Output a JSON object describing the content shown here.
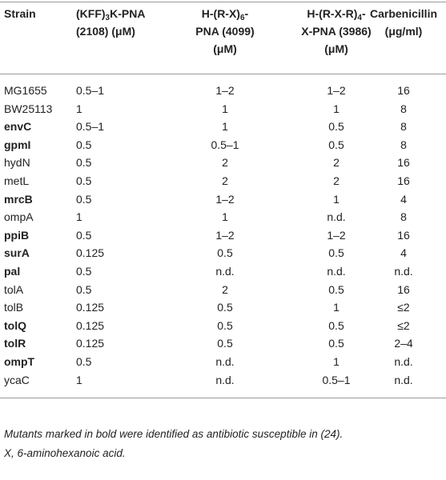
{
  "table": {
    "header": [
      [
        [
          {
            "text": "Strain"
          }
        ]
      ],
      [
        [
          {
            "text": "(KFF)"
          },
          {
            "text": "3",
            "sub": true
          },
          {
            "text": "K-PNA"
          }
        ],
        [
          {
            "text": "(2108) (μM)"
          }
        ]
      ],
      [
        [
          {
            "text": "H-(R-X)"
          },
          {
            "text": "6",
            "sub": true
          },
          {
            "text": "-"
          }
        ],
        [
          {
            "text": "PNA (4099)"
          }
        ],
        [
          {
            "text": "(μM)"
          }
        ]
      ],
      [
        [
          {
            "text": "H-(R-X-R)"
          },
          {
            "text": "4",
            "sub": true
          },
          {
            "text": "-"
          }
        ],
        [
          {
            "text": "X-PNA (3986)"
          }
        ],
        [
          {
            "text": "(μM)"
          }
        ]
      ],
      [
        [
          {
            "text": "Carbenicillin"
          }
        ],
        [
          {
            "text": "(μg/ml)"
          }
        ]
      ]
    ],
    "rows": [
      {
        "strain": "MG1655",
        "bold": false,
        "values": [
          "0.5–1",
          "1–2",
          "1–2",
          "16"
        ]
      },
      {
        "strain": "BW25113",
        "bold": false,
        "values": [
          "1",
          "1",
          "1",
          "8"
        ]
      },
      {
        "strain": "envC",
        "bold": true,
        "values": [
          "0.5–1",
          "1",
          "0.5",
          "8"
        ]
      },
      {
        "strain": "gpmI",
        "bold": true,
        "values": [
          "0.5",
          "0.5–1",
          "0.5",
          "8"
        ]
      },
      {
        "strain": "hydN",
        "bold": false,
        "values": [
          "0.5",
          "2",
          "2",
          "16"
        ]
      },
      {
        "strain": "metL",
        "bold": false,
        "values": [
          "0.5",
          "2",
          "2",
          "16"
        ]
      },
      {
        "strain": "mrcB",
        "bold": true,
        "values": [
          "0.5",
          "1–2",
          "1",
          "4"
        ]
      },
      {
        "strain": "ompA",
        "bold": false,
        "values": [
          "1",
          "1",
          "n.d.",
          "8"
        ]
      },
      {
        "strain": "ppiB",
        "bold": true,
        "values": [
          "0.5",
          "1–2",
          "1–2",
          "16"
        ]
      },
      {
        "strain": "surA",
        "bold": true,
        "values": [
          "0.125",
          "0.5",
          "0.5",
          "4"
        ]
      },
      {
        "strain": "pal",
        "bold": true,
        "values": [
          "0.5",
          "n.d.",
          "n.d.",
          "n.d."
        ]
      },
      {
        "strain": "tolA",
        "bold": false,
        "values": [
          "0.5",
          "2",
          "0.5",
          "16"
        ]
      },
      {
        "strain": "tolB",
        "bold": false,
        "values": [
          "0.125",
          "0.5",
          "1",
          "≤2"
        ]
      },
      {
        "strain": "tolQ",
        "bold": true,
        "values": [
          "0.125",
          "0.5",
          "0.5",
          "≤2"
        ]
      },
      {
        "strain": "tolR",
        "bold": true,
        "values": [
          "0.125",
          "0.5",
          "0.5",
          "2–4"
        ]
      },
      {
        "strain": "ompT",
        "bold": true,
        "values": [
          "0.5",
          "n.d.",
          "1",
          "n.d."
        ]
      },
      {
        "strain": "ycaC",
        "bold": false,
        "values": [
          "1",
          "n.d.",
          "0.5–1",
          "n.d."
        ]
      }
    ],
    "footnotes": [
      "Mutants marked in bold were identified as antibiotic susceptible in (24).",
      "X, 6-aminohexanoic acid."
    ]
  }
}
